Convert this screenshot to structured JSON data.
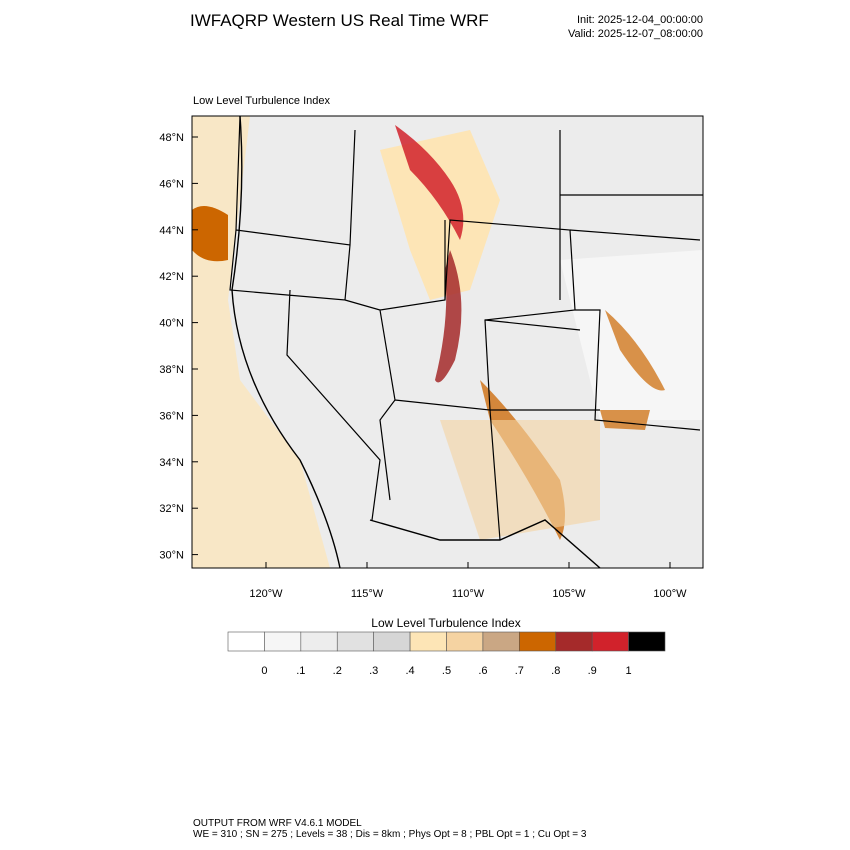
{
  "header": {
    "title": "IWFAQRP Western US Real Time WRF",
    "init": "Init: 2025-12-04_00:00:00",
    "valid": "Valid: 2025-12-07_08:00:00"
  },
  "map": {
    "label": "Low Level Turbulence Index",
    "lat_labels": [
      "48°N",
      "46°N",
      "44°N",
      "42°N",
      "40°N",
      "38°N",
      "36°N",
      "34°N",
      "32°N",
      "30°N"
    ],
    "lon_labels": [
      "120°W",
      "115°W",
      "110°W",
      "105°W",
      "100°W"
    ]
  },
  "colorbar": {
    "title": "Low Level Turbulence Index",
    "labels": [
      "0",
      ".1",
      ".2",
      ".3",
      ".4",
      ".5",
      ".6",
      ".7",
      ".8",
      ".9",
      "1"
    ],
    "colors": [
      "#ffffff",
      "#f6f6f6",
      "#ededed",
      "#e1e1e1",
      "#d6d6d6",
      "#fde5b6",
      "#f5d3a2",
      "#caa784",
      "#cc6600",
      "#a52a2a",
      "#d1222b",
      "#000000"
    ]
  },
  "footer": {
    "line1": "OUTPUT FROM WRF V4.6.1 MODEL",
    "line2": "WE = 310 ; SN = 275 ; Levels = 38 ; Dis = 8km ; Phys Opt = 8 ; PBL Opt = 1 ; Cu Opt = 3"
  }
}
